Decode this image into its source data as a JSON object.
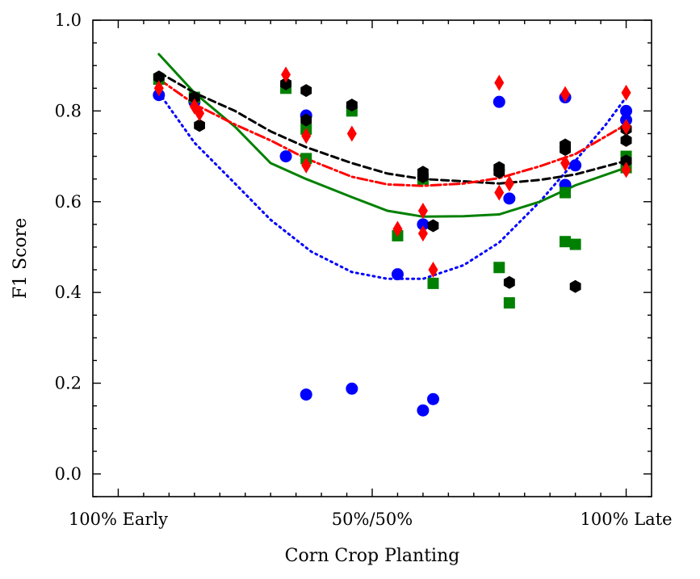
{
  "chart_data": {
    "type": "scatter",
    "title": "",
    "xlabel": "Corn Crop Planting",
    "ylabel": "F1 Score",
    "xlim": [
      -0.05,
      1.05
    ],
    "ylim": [
      -0.05,
      1.0
    ],
    "xticks": [
      {
        "value": 0.0,
        "label": "100% Early"
      },
      {
        "value": 0.5,
        "label": "50%/50%"
      },
      {
        "value": 1.0,
        "label": "100% Late"
      }
    ],
    "yticks": [
      {
        "value": 0.0,
        "label": "0.0"
      },
      {
        "value": 0.2,
        "label": "0.2"
      },
      {
        "value": 0.4,
        "label": "0.4"
      },
      {
        "value": 0.6,
        "label": "0.6"
      },
      {
        "value": 0.8,
        "label": "0.8"
      },
      {
        "value": 1.0,
        "label": "1.0"
      }
    ],
    "series": [
      {
        "name": "blue",
        "color": "#0000ff",
        "marker": "circle",
        "line_style": "dotted",
        "points": [
          [
            0.08,
            0.835
          ],
          [
            0.15,
            0.82
          ],
          [
            0.33,
            0.7
          ],
          [
            0.37,
            0.79
          ],
          [
            0.37,
            0.175
          ],
          [
            0.46,
            0.188
          ],
          [
            0.55,
            0.44
          ],
          [
            0.6,
            0.55
          ],
          [
            0.6,
            0.14
          ],
          [
            0.62,
            0.165
          ],
          [
            0.75,
            0.82
          ],
          [
            0.77,
            0.607
          ],
          [
            0.88,
            0.83
          ],
          [
            0.88,
            0.637
          ],
          [
            0.9,
            0.68
          ],
          [
            1.0,
            0.8
          ],
          [
            1.0,
            0.78
          ]
        ],
        "trend": [
          [
            0.08,
            0.84
          ],
          [
            0.15,
            0.73
          ],
          [
            0.23,
            0.64
          ],
          [
            0.3,
            0.56
          ],
          [
            0.38,
            0.49
          ],
          [
            0.46,
            0.445
          ],
          [
            0.53,
            0.43
          ],
          [
            0.6,
            0.43
          ],
          [
            0.68,
            0.46
          ],
          [
            0.75,
            0.51
          ],
          [
            0.83,
            0.6
          ],
          [
            0.9,
            0.69
          ],
          [
            0.96,
            0.77
          ],
          [
            1.0,
            0.83
          ]
        ]
      },
      {
        "name": "green",
        "color": "#008000",
        "marker": "square",
        "line_style": "solid",
        "points": [
          [
            0.08,
            0.87
          ],
          [
            0.15,
            0.83
          ],
          [
            0.33,
            0.85
          ],
          [
            0.37,
            0.76
          ],
          [
            0.37,
            0.695
          ],
          [
            0.46,
            0.8
          ],
          [
            0.55,
            0.525
          ],
          [
            0.6,
            0.65
          ],
          [
            0.62,
            0.42
          ],
          [
            0.75,
            0.455
          ],
          [
            0.77,
            0.377
          ],
          [
            0.88,
            0.512
          ],
          [
            0.88,
            0.62
          ],
          [
            0.9,
            0.506
          ],
          [
            1.0,
            0.7
          ],
          [
            1.0,
            0.675
          ]
        ],
        "trend": [
          [
            0.08,
            0.925
          ],
          [
            0.15,
            0.84
          ],
          [
            0.23,
            0.765
          ],
          [
            0.3,
            0.685
          ],
          [
            0.37,
            0.65
          ],
          [
            0.46,
            0.61
          ],
          [
            0.53,
            0.58
          ],
          [
            0.6,
            0.567
          ],
          [
            0.68,
            0.568
          ],
          [
            0.75,
            0.572
          ],
          [
            0.83,
            0.6
          ],
          [
            0.9,
            0.636
          ],
          [
            1.0,
            0.675
          ]
        ]
      },
      {
        "name": "black",
        "color": "#000000",
        "marker": "hexagon",
        "line_style": "dashed",
        "points": [
          [
            0.08,
            0.875
          ],
          [
            0.15,
            0.83
          ],
          [
            0.16,
            0.768
          ],
          [
            0.33,
            0.86
          ],
          [
            0.37,
            0.845
          ],
          [
            0.37,
            0.78
          ],
          [
            0.46,
            0.813
          ],
          [
            0.6,
            0.665
          ],
          [
            0.6,
            0.655
          ],
          [
            0.62,
            0.547
          ],
          [
            0.75,
            0.675
          ],
          [
            0.75,
            0.665
          ],
          [
            0.77,
            0.422
          ],
          [
            0.88,
            0.725
          ],
          [
            0.88,
            0.715
          ],
          [
            0.9,
            0.413
          ],
          [
            1.0,
            0.76
          ],
          [
            1.0,
            0.735
          ],
          [
            1.0,
            0.69
          ]
        ],
        "trend": [
          [
            0.08,
            0.885
          ],
          [
            0.15,
            0.84
          ],
          [
            0.23,
            0.8
          ],
          [
            0.3,
            0.755
          ],
          [
            0.37,
            0.72
          ],
          [
            0.46,
            0.685
          ],
          [
            0.53,
            0.662
          ],
          [
            0.6,
            0.65
          ],
          [
            0.68,
            0.645
          ],
          [
            0.75,
            0.64
          ],
          [
            0.83,
            0.648
          ],
          [
            0.9,
            0.66
          ],
          [
            1.0,
            0.69
          ]
        ]
      },
      {
        "name": "red",
        "color": "#ff0000",
        "marker": "diamond",
        "line_style": "dashdot",
        "points": [
          [
            0.08,
            0.85
          ],
          [
            0.15,
            0.81
          ],
          [
            0.16,
            0.795
          ],
          [
            0.33,
            0.88
          ],
          [
            0.37,
            0.745
          ],
          [
            0.37,
            0.68
          ],
          [
            0.46,
            0.75
          ],
          [
            0.55,
            0.54
          ],
          [
            0.6,
            0.58
          ],
          [
            0.6,
            0.53
          ],
          [
            0.62,
            0.45
          ],
          [
            0.75,
            0.862
          ],
          [
            0.75,
            0.62
          ],
          [
            0.77,
            0.64
          ],
          [
            0.88,
            0.837
          ],
          [
            0.88,
            0.685
          ],
          [
            1.0,
            0.84
          ],
          [
            1.0,
            0.765
          ],
          [
            1.0,
            0.67
          ]
        ],
        "trend": [
          [
            0.08,
            0.87
          ],
          [
            0.15,
            0.815
          ],
          [
            0.23,
            0.77
          ],
          [
            0.3,
            0.735
          ],
          [
            0.37,
            0.695
          ],
          [
            0.46,
            0.655
          ],
          [
            0.53,
            0.638
          ],
          [
            0.6,
            0.635
          ],
          [
            0.68,
            0.64
          ],
          [
            0.75,
            0.652
          ],
          [
            0.83,
            0.678
          ],
          [
            0.9,
            0.705
          ],
          [
            1.0,
            0.77
          ]
        ]
      }
    ]
  }
}
